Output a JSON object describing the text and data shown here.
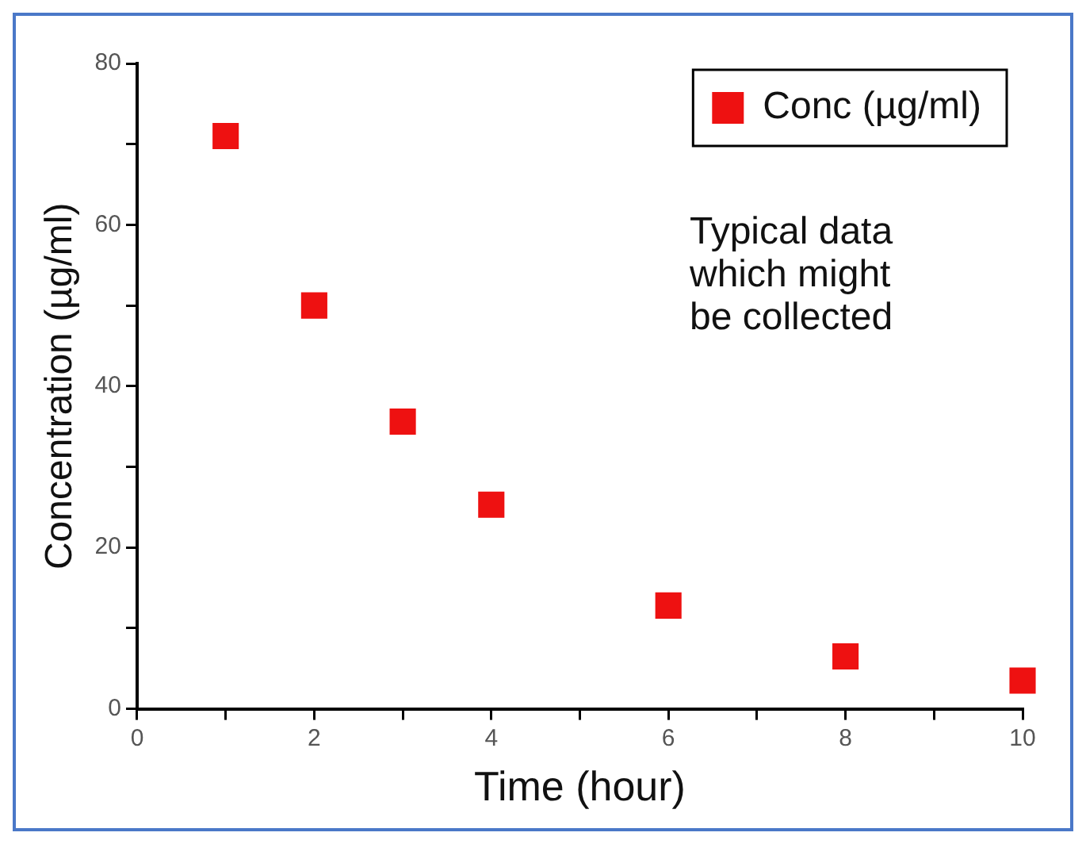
{
  "chart_data": {
    "type": "scatter",
    "xlabel": "Time (hour)",
    "ylabel": "Concentration (µg/ml)",
    "x": [
      1,
      2,
      3,
      4,
      6,
      8,
      10
    ],
    "series": [
      {
        "name": "Conc (µg/ml)",
        "color": "#ee1111",
        "values": [
          71,
          50,
          35.6,
          25.3,
          12.8,
          6.5,
          3.5
        ]
      }
    ],
    "xlim": [
      0,
      10
    ],
    "xticks": [
      0,
      {
        "value": 1,
        "label": null
      },
      2,
      {
        "value": 3,
        "label": null
      },
      4,
      {
        "value": 5,
        "label": null
      },
      6,
      {
        "value": 7,
        "label": null
      },
      8,
      {
        "value": 9,
        "label": null
      },
      10
    ],
    "ylim": [
      0,
      80
    ],
    "yticks": [
      0,
      {
        "value": 10,
        "label": null
      },
      20,
      {
        "value": 30,
        "label": null
      },
      40,
      {
        "value": 50,
        "label": null
      },
      60,
      {
        "value": 70,
        "label": null
      },
      80
    ],
    "marker": "square",
    "grid": false,
    "legend": "top right",
    "annotations": [
      "Typical data\nwhich might\nbe collected"
    ]
  }
}
